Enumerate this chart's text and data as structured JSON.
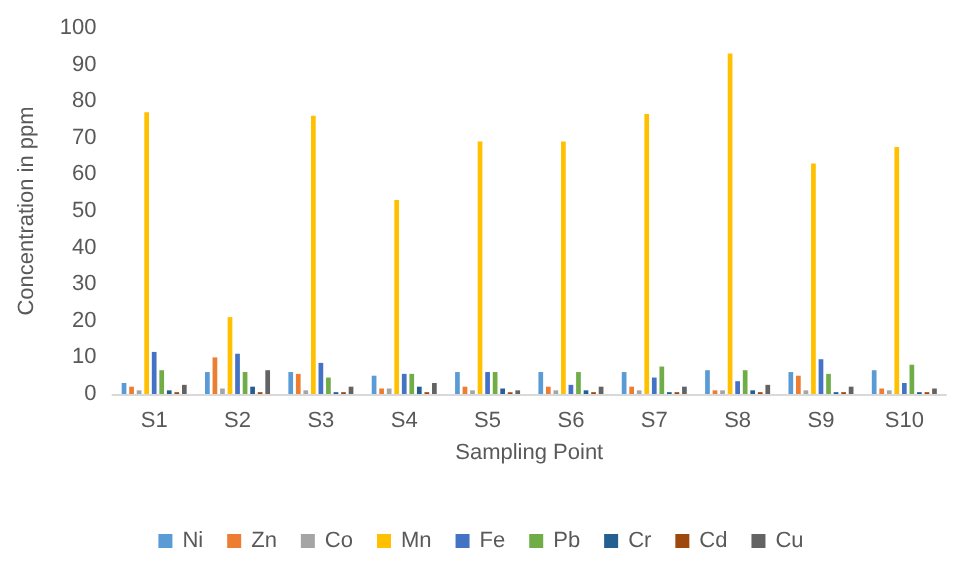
{
  "chart_data": {
    "type": "bar",
    "xlabel": "Sampling Point",
    "ylabel": "Concentration in ppm",
    "categories": [
      "S1",
      "S2",
      "S3",
      "S4",
      "S5",
      "S6",
      "S7",
      "S8",
      "S9",
      "S10"
    ],
    "series": [
      {
        "name": "Ni",
        "color": "#5b9bd5",
        "values": [
          3,
          6,
          6,
          5,
          6,
          6,
          6,
          6.5,
          6,
          6.5
        ]
      },
      {
        "name": "Zn",
        "color": "#ed7d31",
        "values": [
          2,
          10,
          5.5,
          1.5,
          2,
          2,
          2,
          1,
          5,
          1.5
        ]
      },
      {
        "name": "Co",
        "color": "#a5a5a5",
        "values": [
          1,
          1.5,
          1,
          1.5,
          1,
          1,
          1,
          1,
          1,
          1
        ]
      },
      {
        "name": "Mn",
        "color": "#ffc000",
        "values": [
          77,
          21,
          76,
          53,
          69,
          69,
          76.5,
          93,
          63,
          67.5
        ]
      },
      {
        "name": "Fe",
        "color": "#4472c4",
        "values": [
          11.5,
          11,
          8.5,
          5.5,
          6,
          2.5,
          4.5,
          3.5,
          9.5,
          3
        ]
      },
      {
        "name": "Pb",
        "color": "#70ad47",
        "values": [
          6.5,
          6,
          4.5,
          5.5,
          6,
          6,
          7.5,
          6.5,
          5.5,
          8
        ]
      },
      {
        "name": "Cr",
        "color": "#255e91",
        "values": [
          1,
          2,
          0.5,
          2,
          1.5,
          1,
          0.5,
          1,
          0.5,
          0.5
        ]
      },
      {
        "name": "Cd",
        "color": "#9e480e",
        "values": [
          0.5,
          0.5,
          0.5,
          0.5,
          0.5,
          0.5,
          0.5,
          0.5,
          0.5,
          0.5
        ]
      },
      {
        "name": "Cu",
        "color": "#636363",
        "values": [
          2.5,
          6.5,
          2,
          3,
          1,
          2,
          2,
          2.5,
          2,
          1.5
        ]
      }
    ],
    "ylim": [
      0,
      100
    ],
    "yticks": [
      0,
      10,
      20,
      30,
      40,
      50,
      60,
      70,
      80,
      90,
      100
    ],
    "grid": false,
    "legend": "bottom"
  }
}
